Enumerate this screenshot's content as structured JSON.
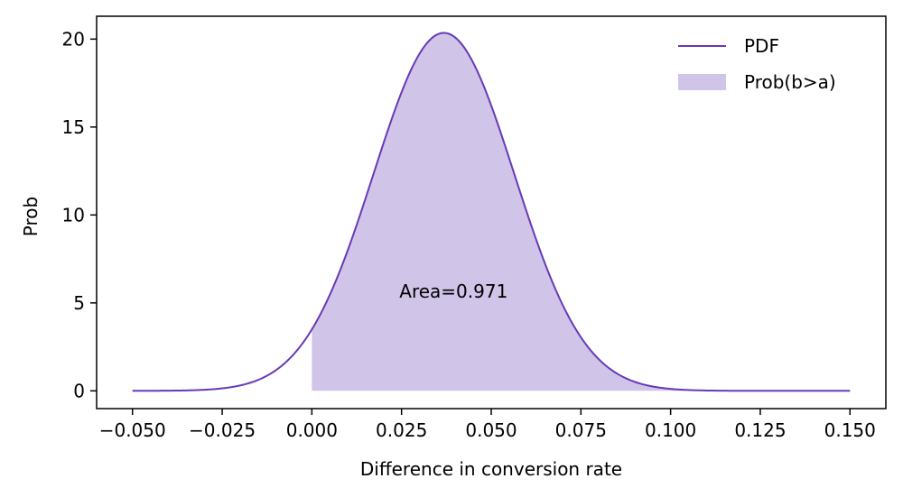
{
  "chart_data": {
    "type": "area",
    "title": "",
    "xlabel": "Difference in conversion rate",
    "ylabel": "Prob",
    "xlim": [
      -0.06,
      0.16
    ],
    "ylim": [
      -1.01,
      21.3
    ],
    "x_ticks": [
      -0.05,
      -0.025,
      0.0,
      0.025,
      0.05,
      0.075,
      0.1,
      0.125,
      0.15
    ],
    "x_tick_labels": [
      "−0.050",
      "−0.025",
      "0.000",
      "0.025",
      "0.050",
      "0.075",
      "0.100",
      "0.125",
      "0.150"
    ],
    "y_ticks": [
      0,
      5,
      10,
      15,
      20
    ],
    "y_tick_labels": [
      "0",
      "5",
      "10",
      "15",
      "20"
    ],
    "grid": false,
    "legend_position": "top-right",
    "series": [
      {
        "name": "PDF",
        "kind": "line",
        "color": "#673ab7",
        "distribution": "normal",
        "mean": 0.0368,
        "sd": 0.0196,
        "x_range": [
          -0.05,
          0.15
        ],
        "points": [
          [
            -0.05,
            0.0
          ],
          [
            -0.025,
            0.13
          ],
          [
            0.0,
            3.56
          ],
          [
            0.025,
            16.7
          ],
          [
            0.0368,
            20.3
          ],
          [
            0.05,
            16.2
          ],
          [
            0.075,
            3.1
          ],
          [
            0.1,
            0.1
          ],
          [
            0.125,
            0.0
          ],
          [
            0.15,
            0.0
          ]
        ]
      },
      {
        "name": "Prob(b>a)",
        "kind": "area",
        "color": "#d1c4e9",
        "x_range": [
          0.0,
          0.15
        ]
      }
    ],
    "annotations": [
      {
        "text": "Area=0.971",
        "x": 0.0395,
        "y": 5.3
      }
    ]
  }
}
